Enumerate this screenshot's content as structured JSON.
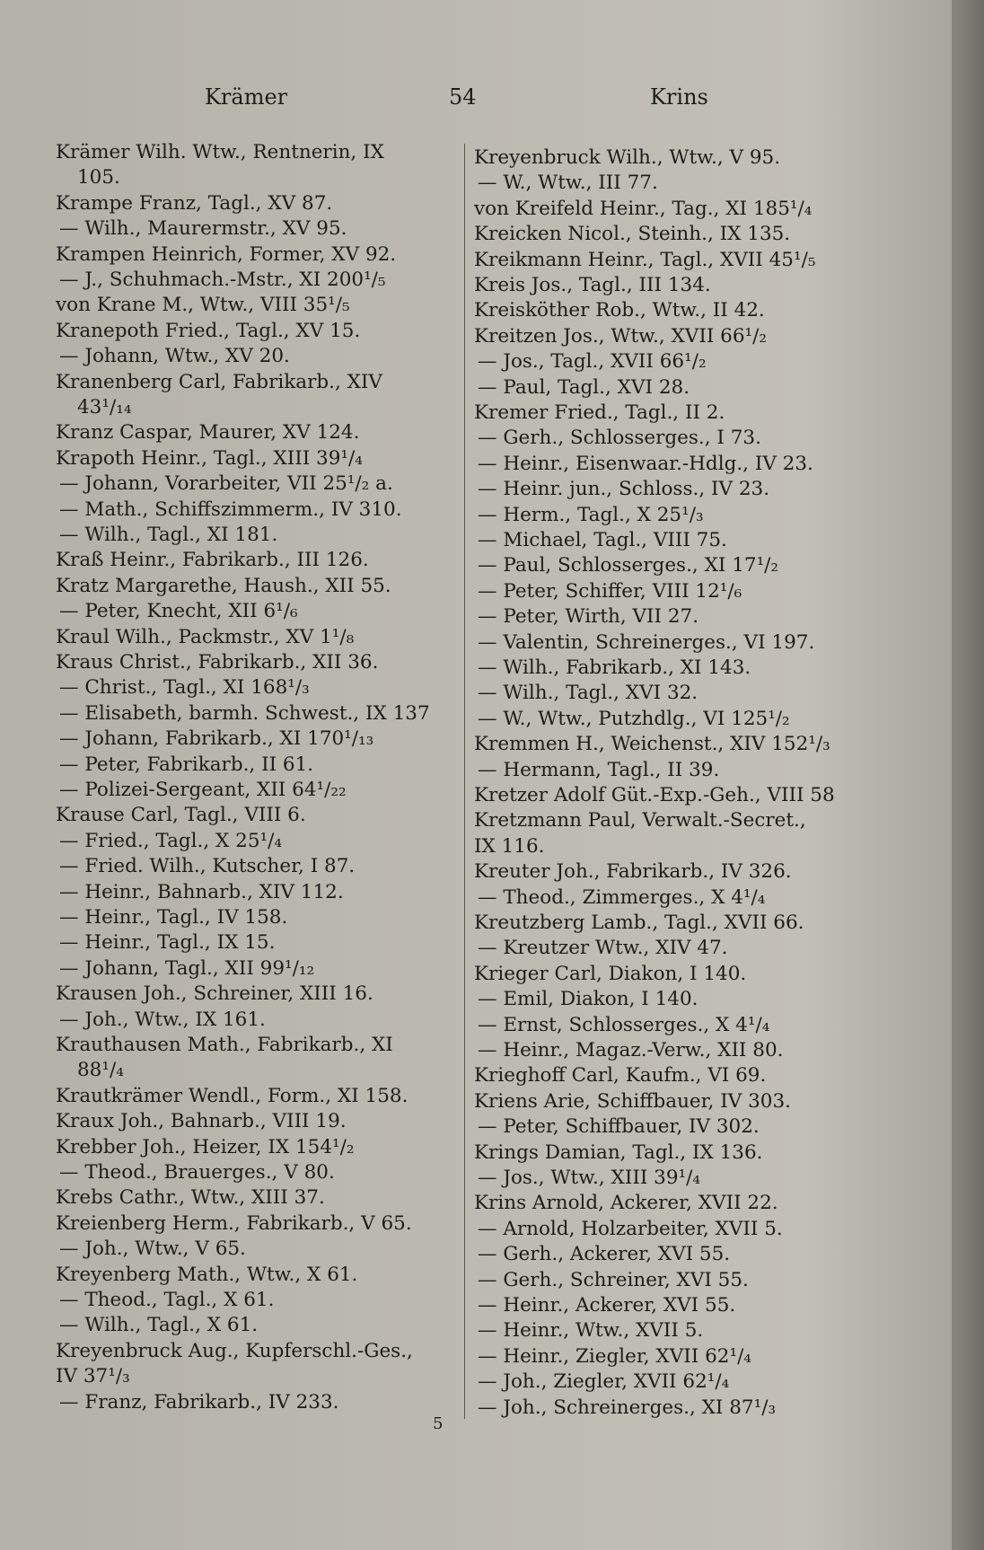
{
  "header": {
    "left": "Krämer",
    "page": "54",
    "right": "Krins"
  },
  "columns": [
    {
      "lines": [
        "Krämer Wilh. Wtw., Rentnerin, IX",
        "105.",
        "Krampe Franz, Tagl., XV 87.",
        "— Wilh., Maurermstr., XV 95.",
        "Krampen Heinrich, Former, XV 92.",
        "— J., Schuhmach.-Mstr., XI 200¹/₅",
        "von Krane M., Wtw., VIII 35¹/₅",
        "Kranepoth Fried., Tagl., XV 15.",
        "— Johann, Wtw., XV 20.",
        "Kranenberg Carl, Fabrikarb., XIV",
        "43¹/₁₄",
        "Kranz Caspar, Maurer, XV 124.",
        "Krapoth Heinr., Tagl., XIII 39¹/₄",
        "— Johann, Vorarbeiter, VII 25¹/₂ a.",
        "— Math., Schiffszimmerm., IV 310.",
        "— Wilh., Tagl., XI 181.",
        "Kraß Heinr., Fabrikarb., III 126.",
        "Kratz Margarethe, Haush., XII 55.",
        "— Peter, Knecht, XII 6¹/₆",
        "Kraul Wilh., Packmstr., XV 1¹/₈",
        "Kraus Christ., Fabrikarb., XII 36.",
        "— Christ., Tagl., XI 168¹/₃",
        "— Elisabeth, barmh. Schwest., IX 137",
        "— Johann, Fabrikarb., XI 170¹/₁₃",
        "— Peter, Fabrikarb., II 61.",
        "— Polizei-Sergeant, XII 64¹/₂₂",
        "Krause Carl, Tagl., VIII 6.",
        "— Fried., Tagl., X 25¹/₄",
        "— Fried. Wilh., Kutscher, I 87.",
        "— Heinr., Bahnarb., XIV 112.",
        "— Heinr., Tagl., IV 158.",
        "— Heinr., Tagl., IX 15.",
        "— Johann, Tagl., XII 99¹/₁₂",
        "Krausen Joh., Schreiner, XIII 16.",
        "— Joh., Wtw., IX 161.",
        "Krauthausen Math., Fabrikarb., XI",
        "88¹/₄",
        "Krautkrämer Wendl., Form., XI 158.",
        "Kraux Joh., Bahnarb., VIII 19.",
        "Krebber Joh., Heizer, IX 154¹/₂",
        "— Theod., Brauerges., V 80.",
        "Krebs Cathr., Wtw., XIII 37.",
        "Kreienberg Herm., Fabrikarb., V 65.",
        "— Joh., Wtw., V 65.",
        "Kreyenberg Math., Wtw., X 61.",
        "— Theod., Tagl., X 61.",
        "— Wilh., Tagl., X 61.",
        "Kreyenbruck Aug., Kupferschl.-Ges.,",
        "IV 37¹/₃",
        "— Franz, Fabrikarb., IV 233."
      ]
    },
    {
      "lines": [
        "Kreyenbruck Wilh., Wtw., V 95.",
        "— W., Wtw., III 77.",
        "von Kreifeld Heinr., Tag., XI 185¹/₄",
        "Kreicken Nicol., Steinh., IX 135.",
        "Kreikmann Heinr., Tagl., XVII 45¹/₅",
        "Kreis Jos., Tagl., III 134.",
        "Kreisköther Rob., Wtw., II 42.",
        "Kreitzen Jos., Wtw., XVII 66¹/₂",
        "— Jos., Tagl., XVII 66¹/₂",
        "— Paul, Tagl., XVI 28.",
        "Kremer Fried., Tagl., II 2.",
        "— Gerh., Schlosserges., I 73.",
        "— Heinr., Eisenwaar.-Hdlg., IV 23.",
        "— Heinr. jun., Schloss., IV 23.",
        "— Herm., Tagl., X 25¹/₃",
        "— Michael, Tagl., VIII 75.",
        "— Paul, Schlosserges., XI 17¹/₂",
        "— Peter, Schiffer, VIII 12¹/₆",
        "— Peter, Wirth, VII 27.",
        "— Valentin, Schreinerges., VI 197.",
        "— Wilh., Fabrikarb., XI 143.",
        "— Wilh., Tagl., XVI 32.",
        "— W., Wtw., Putzhdlg., VI 125¹/₂",
        "Kremmen H., Weichenst., XIV 152¹/₃",
        "— Hermann, Tagl., II 39.",
        "Kretzer Adolf Güt.-Exp.-Geh., VIII 58",
        "Kretzmann Paul, Verwalt.-Secret.,",
        "IX 116.",
        "Kreuter Joh., Fabrikarb., IV 326.",
        "— Theod., Zimmerges., X 4¹/₄",
        "Kreutzberg Lamb., Tagl., XVII 66.",
        "— Kreutzer Wtw., XIV 47.",
        "Krieger Carl, Diakon, I 140.",
        "— Emil, Diakon, I 140.",
        "— Ernst, Schlosserges., X 4¹/₄",
        "— Heinr., Magaz.-Verw., XII 80.",
        "Krieghoff Carl, Kaufm., VI 69.",
        "Kriens Arie, Schiffbauer, IV 303.",
        "— Peter, Schiffbauer, IV 302.",
        "Krings Damian, Tagl., IX 136.",
        "— Jos., Wtw., XIII 39¹/₄",
        "Krins Arnold, Ackerer, XVII 22.",
        "— Arnold, Holzarbeiter, XVII 5.",
        "— Gerh., Ackerer, XVI 55.",
        "— Gerh., Schreiner, XVI 55.",
        "— Heinr., Ackerer, XVI 55.",
        "— Heinr., Wtw., XVII 5.",
        "— Heinr., Ziegler, XVII 62¹/₄",
        "— Joh., Ziegler, XVII 62¹/₄",
        "— Joh., Schreinerges., XI 87¹/₃"
      ]
    }
  ],
  "footer": {
    "signature": "5"
  }
}
